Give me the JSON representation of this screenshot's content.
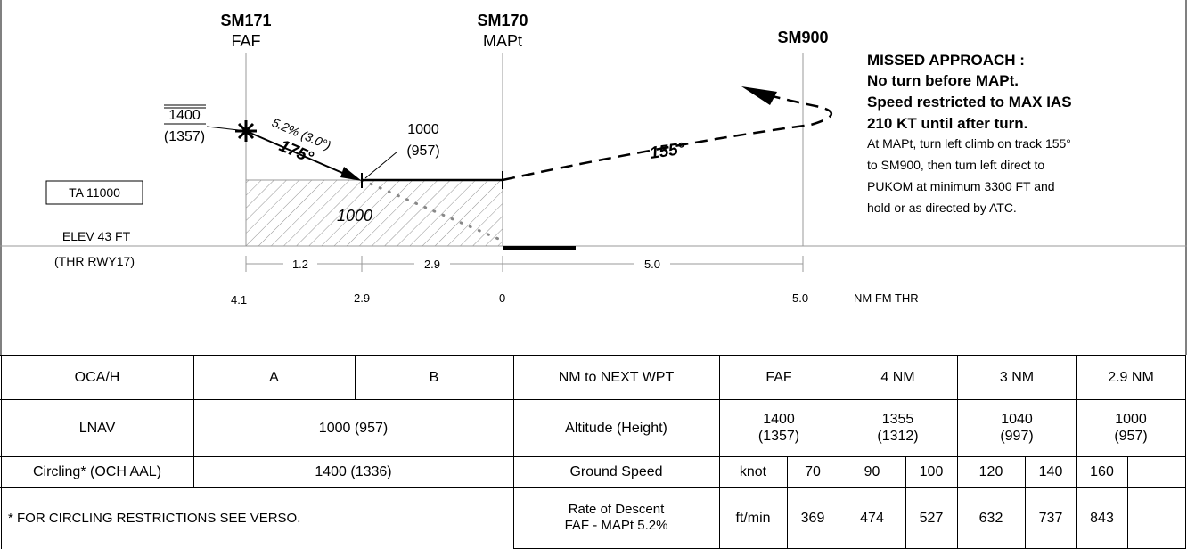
{
  "profile": {
    "fixes": [
      {
        "id": "SM171",
        "role": "FAF"
      },
      {
        "id": "SM170",
        "role": "MAPt"
      },
      {
        "id": "SM900",
        "role": ""
      }
    ],
    "faf_altitude": "1400",
    "faf_height": "(1357)",
    "gradient": "5.2% (3.0°)",
    "inbound_track": "175°",
    "stepdown_altitude": "1000",
    "stepdown_height": "(957)",
    "oca_box_value": "1000",
    "missed_track": "155°",
    "ta": "TA 11000",
    "elev": "ELEV 43 FT",
    "thr": "(THR RWY17)",
    "segments": [
      "1.2",
      "2.9",
      "5.0"
    ],
    "distances": [
      "4.1",
      "2.9",
      "0",
      "5.0"
    ],
    "distance_unit": "NM FM THR",
    "missed_title": "MISSED APPROACH :",
    "missed_lines_bold": [
      "No turn before MAPt.",
      "Speed restricted to MAX IAS",
      "210 KT until after turn."
    ],
    "missed_lines": [
      "At MAPt, turn left climb on track 155°",
      "to SM900, then turn left direct to",
      "PUKOM at minimum 3300 FT and",
      "hold or as directed by ATC."
    ]
  },
  "minima": {
    "header": {
      "label": "OCA/H",
      "cat_a": "A",
      "cat_b": "B"
    },
    "lnav": {
      "label": "LNAV",
      "value": "1000 (957)"
    },
    "circling": {
      "label": "Circling* (OCH AAL)",
      "value": "1400 (1336)"
    },
    "note": "* FOR CIRCLING RESTRICTIONS SEE VERSO."
  },
  "descent_table": {
    "row_labels": {
      "wpt": "NM to NEXT WPT",
      "altitude": "Altitude (Height)",
      "ground_speed": "Ground Speed",
      "rate": "Rate of Descent\nFAF - MAPt 5.2%"
    },
    "wpt": [
      "FAF",
      "4 NM",
      "3 NM",
      "2.9 NM"
    ],
    "altitudes": [
      "1400\n(1357)",
      "1355\n(1312)",
      "1040\n(997)",
      "1000\n(957)"
    ],
    "gs_unit": "knot",
    "gs": [
      "70",
      "90",
      "100",
      "120",
      "140",
      "160"
    ],
    "rod_unit": "ft/min",
    "rod": [
      "369",
      "474",
      "527",
      "632",
      "737",
      "843"
    ]
  }
}
